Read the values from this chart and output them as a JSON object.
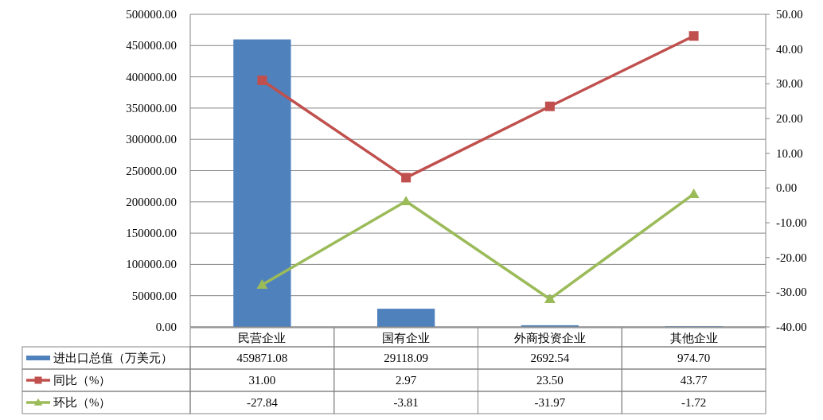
{
  "chart_data": {
    "type": "bar",
    "categories": [
      "民营企业",
      "国有企业",
      "外商投资企业",
      "其他企业"
    ],
    "series": [
      {
        "name": "进出口总值（万美元）",
        "type": "bar",
        "color": "#4f81bd",
        "values": [
          459871.08,
          29118.09,
          2692.54,
          974.7
        ],
        "value_labels": [
          "459871.08",
          "29118.09",
          "2692.54",
          "974.70"
        ]
      },
      {
        "name": "同比（%）",
        "type": "line",
        "axis": "y2",
        "color": "#c0504d",
        "marker": "square",
        "values": [
          31.0,
          2.97,
          23.5,
          43.77
        ],
        "value_labels": [
          "31.00",
          "2.97",
          "23.50",
          "43.77"
        ]
      },
      {
        "name": "环比（%）",
        "type": "line",
        "axis": "y2",
        "color": "#9bbb59",
        "marker": "triangle",
        "values": [
          -27.84,
          -3.81,
          -31.97,
          -1.72
        ],
        "value_labels": [
          "-27.84",
          "-3.81",
          "-31.97",
          "-1.72"
        ]
      }
    ],
    "ylim": [
      0,
      500000
    ],
    "yticks": [
      {
        "value": 0,
        "label": "0.00"
      },
      {
        "value": 50000,
        "label": "50000.00"
      },
      {
        "value": 100000,
        "label": "100000.00"
      },
      {
        "value": 150000,
        "label": "150000.00"
      },
      {
        "value": 200000,
        "label": "200000.00"
      },
      {
        "value": 250000,
        "label": "250000.00"
      },
      {
        "value": 300000,
        "label": "300000.00"
      },
      {
        "value": 350000,
        "label": "350000.00"
      },
      {
        "value": 400000,
        "label": "400000.00"
      },
      {
        "value": 450000,
        "label": "450000.00"
      },
      {
        "value": 500000,
        "label": "500000.00"
      }
    ],
    "y2lim": [
      -40,
      50
    ],
    "y2ticks": [
      {
        "value": -40,
        "label": "-40.00"
      },
      {
        "value": -30,
        "label": "-30.00"
      },
      {
        "value": -20,
        "label": "-20.00"
      },
      {
        "value": -10,
        "label": "-10.00"
      },
      {
        "value": 0,
        "label": "0.00"
      },
      {
        "value": 10,
        "label": "10.00"
      },
      {
        "value": 20,
        "label": "20.00"
      },
      {
        "value": 30,
        "label": "30.00"
      },
      {
        "value": 40,
        "label": "40.00"
      },
      {
        "value": 50,
        "label": "50.00"
      }
    ],
    "grid": "y",
    "legend": "bottom"
  }
}
